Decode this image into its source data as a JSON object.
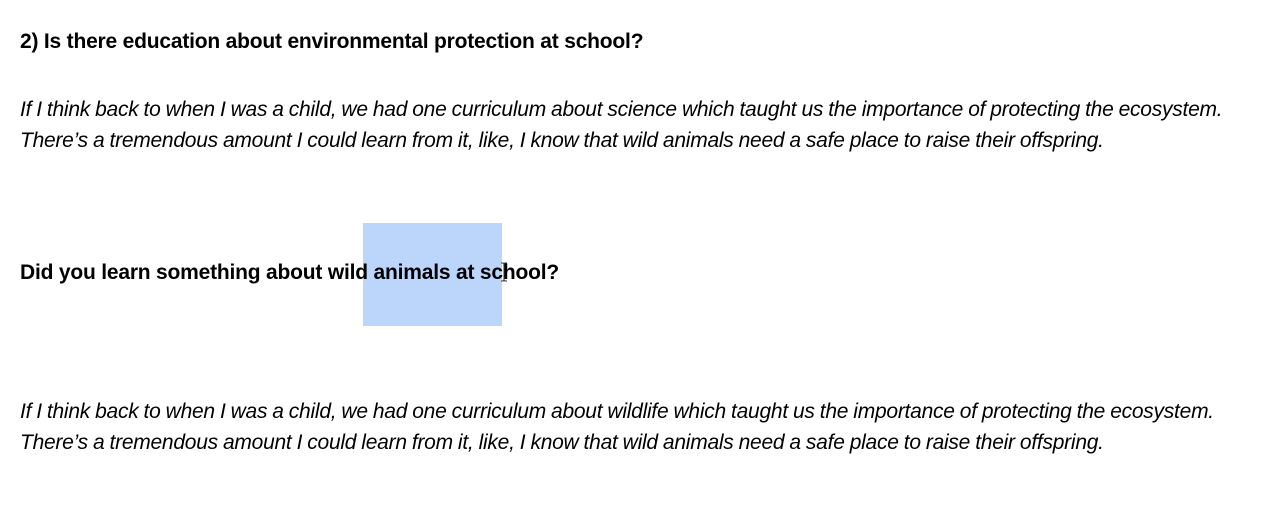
{
  "document": {
    "question_1": "2) Is there education about environmental protection at school?",
    "answer_1": "If I think back to when I was a child, we had one curriculum about science which taught us the importance of protecting the ecosystem. There’s a tremendous amount I could learn from it, like, I know that wild animals need a safe place to raise their offspring.",
    "question_2": {
      "before": "Did you learn something about ",
      "selected": "wild animals",
      "after": " at school?"
    },
    "answer_2": "If I think back to when I was a child, we had one curriculum about wildlife which taught us the importance of protecting the ecosystem. There’s a tremendous amount I could learn from it, like, I know that wild animals need a safe place to raise their offspring."
  },
  "colors": {
    "selection_highlight": "#bcd6fb",
    "text": "#000000",
    "background": "#ffffff"
  },
  "cursor": {
    "icon": "text-cursor-icon"
  }
}
